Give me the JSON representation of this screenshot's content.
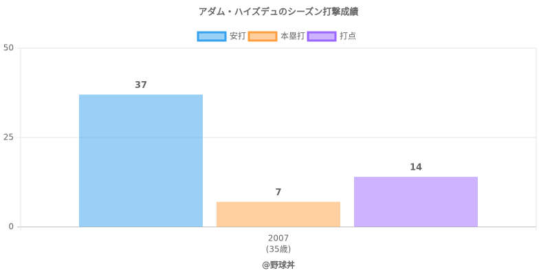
{
  "chart_data": {
    "type": "bar",
    "title": "アダム・ハイズデュのシーズン打撃成績",
    "categories": [
      [
        "2007",
        "(35歳)"
      ]
    ],
    "series": [
      {
        "name": "安打",
        "color": "#36a2eb",
        "values": [
          37
        ]
      },
      {
        "name": "本塁打",
        "color": "#ff9f40",
        "values": [
          7
        ]
      },
      {
        "name": "打点",
        "color": "#9966ff",
        "values": [
          14
        ]
      }
    ],
    "ylim": [
      0,
      50
    ],
    "yticks": [
      0,
      25,
      50
    ],
    "grid": true,
    "legend": "top",
    "footer": "@野球丼"
  }
}
